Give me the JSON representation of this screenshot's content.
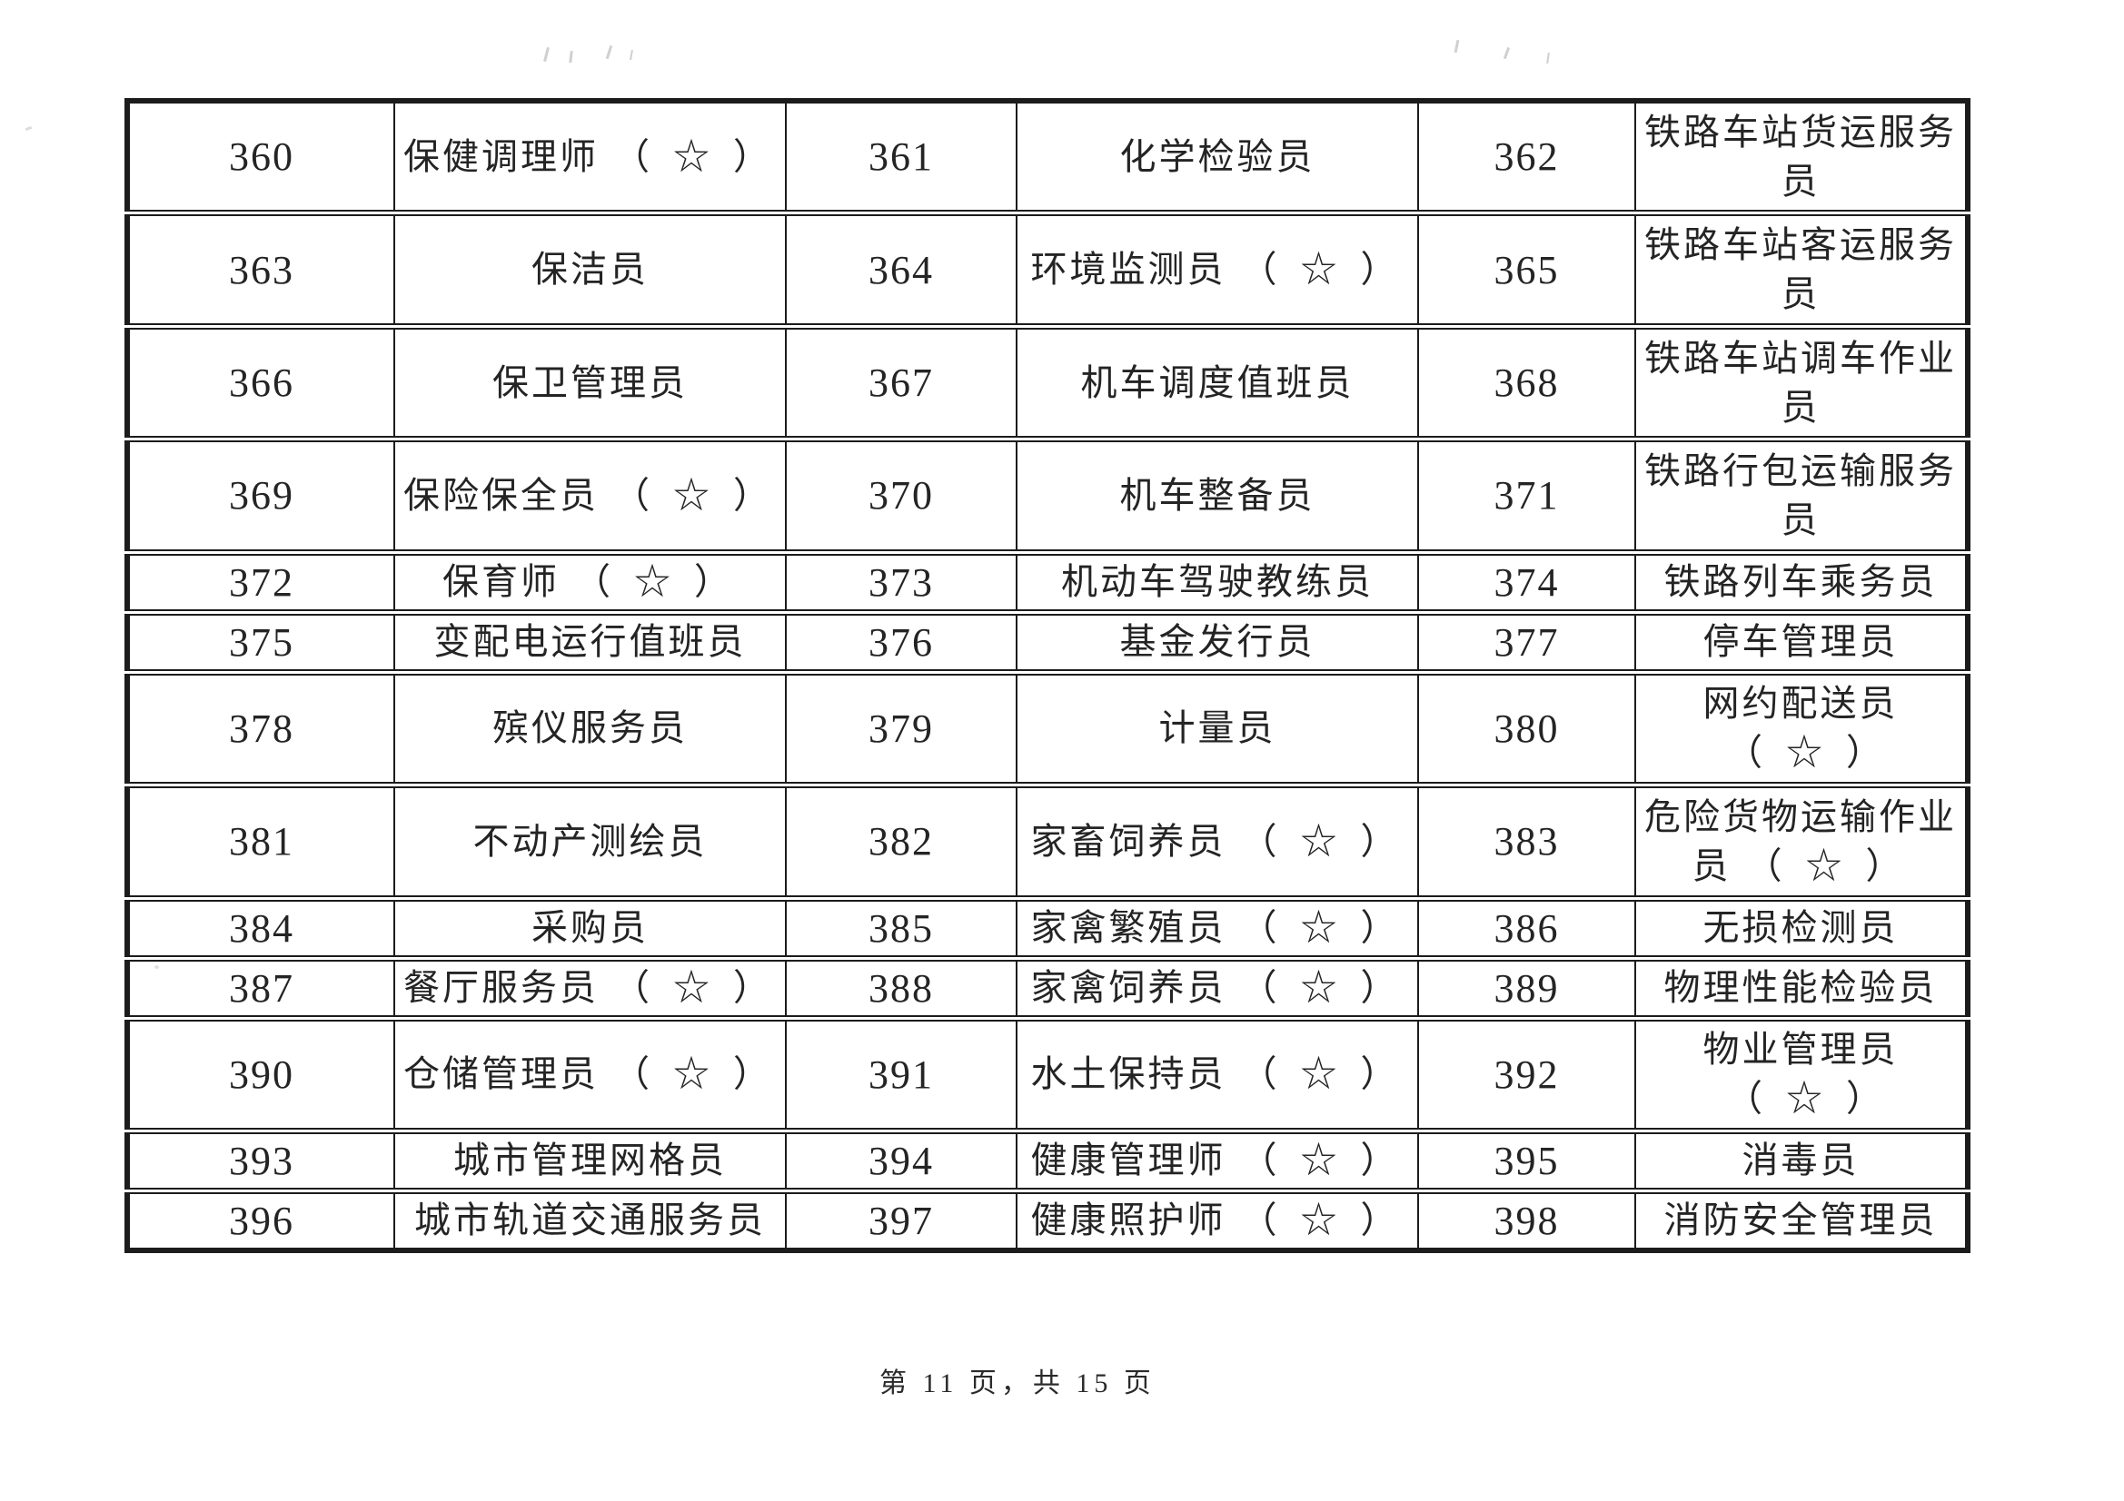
{
  "page": {
    "footer": "第 11 页，共 15 页"
  },
  "table": {
    "star_suffix": "（ ☆ ）",
    "rows": [
      [
        {
          "no": "360",
          "name": "保健调理师",
          "star": true
        },
        {
          "no": "361",
          "name": "化学检验员",
          "star": false
        },
        {
          "no": "362",
          "name": "铁路车站货运服务员",
          "star": false
        }
      ],
      [
        {
          "no": "363",
          "name": "保洁员",
          "star": false
        },
        {
          "no": "364",
          "name": "环境监测员",
          "star": true
        },
        {
          "no": "365",
          "name": "铁路车站客运服务员",
          "star": false
        }
      ],
      [
        {
          "no": "366",
          "name": "保卫管理员",
          "star": false
        },
        {
          "no": "367",
          "name": "机车调度值班员",
          "star": false
        },
        {
          "no": "368",
          "name": "铁路车站调车作业员",
          "star": false
        }
      ],
      [
        {
          "no": "369",
          "name": "保险保全员",
          "star": true
        },
        {
          "no": "370",
          "name": "机车整备员",
          "star": false
        },
        {
          "no": "371",
          "name": "铁路行包运输服务员",
          "star": false
        }
      ],
      [
        {
          "no": "372",
          "name": "保育师",
          "star": true
        },
        {
          "no": "373",
          "name": "机动车驾驶教练员",
          "star": false
        },
        {
          "no": "374",
          "name": "铁路列车乘务员",
          "star": false
        }
      ],
      [
        {
          "no": "375",
          "name": "变配电运行值班员",
          "star": false
        },
        {
          "no": "376",
          "name": "基金发行员",
          "star": false
        },
        {
          "no": "377",
          "name": "停车管理员",
          "star": false
        }
      ],
      [
        {
          "no": "378",
          "name": "殡仪服务员",
          "star": false
        },
        {
          "no": "379",
          "name": "计量员",
          "star": false
        },
        {
          "no": "380",
          "name": "网约配送员",
          "star": true
        }
      ],
      [
        {
          "no": "381",
          "name": "不动产测绘员",
          "star": false
        },
        {
          "no": "382",
          "name": "家畜饲养员",
          "star": true
        },
        {
          "no": "383",
          "name": "危险货物运输作业员",
          "star": true
        }
      ],
      [
        {
          "no": "384",
          "name": "采购员",
          "star": false
        },
        {
          "no": "385",
          "name": "家禽繁殖员",
          "star": true
        },
        {
          "no": "386",
          "name": "无损检测员",
          "star": false
        }
      ],
      [
        {
          "no": "387",
          "name": "餐厅服务员",
          "star": true
        },
        {
          "no": "388",
          "name": "家禽饲养员",
          "star": true
        },
        {
          "no": "389",
          "name": "物理性能检验员",
          "star": false
        }
      ],
      [
        {
          "no": "390",
          "name": "仓储管理员",
          "star": true
        },
        {
          "no": "391",
          "name": "水土保持员",
          "star": true
        },
        {
          "no": "392",
          "name": "物业管理员",
          "star": true
        }
      ],
      [
        {
          "no": "393",
          "name": "城市管理网格员",
          "star": false
        },
        {
          "no": "394",
          "name": "健康管理师",
          "star": true
        },
        {
          "no": "395",
          "name": "消毒员",
          "star": false
        }
      ],
      [
        {
          "no": "396",
          "name": "城市轨道交通服务员",
          "star": false
        },
        {
          "no": "397",
          "name": "健康照护师",
          "star": true
        },
        {
          "no": "398",
          "name": "消防安全管理员",
          "star": false
        }
      ]
    ]
  }
}
